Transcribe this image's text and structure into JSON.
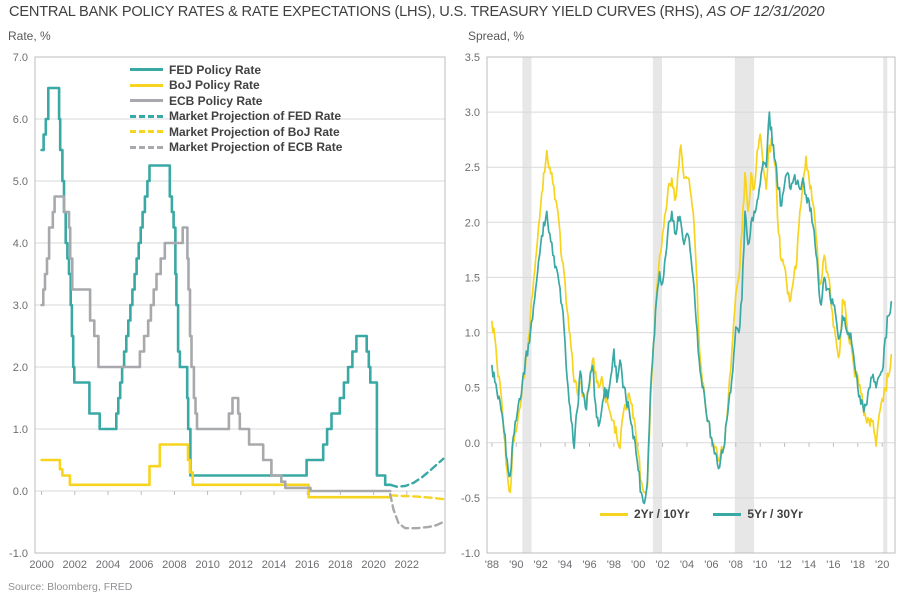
{
  "title": {
    "main": "CENTRAL BANK POLICY RATES & RATE EXPECTATIONS (LHS), U.S. TREASURY YIELD CURVES (RHS), ",
    "as_of": "AS OF 12/31/2020"
  },
  "source": "Source: Bloomberg, FRED",
  "colors": {
    "teal": "#3aa8a4",
    "yellow": "#f6d41f",
    "gray": "#a7a9ac",
    "grid": "#d9d9d9",
    "border": "#bcbcbc",
    "band": "#e7e7e7",
    "text_dark": "#414042",
    "text_axis": "#6d6e71",
    "text_source": "#8f9194"
  },
  "chart_data": [
    {
      "type": "step-line",
      "ylabel": "Rate, %",
      "xlim": [
        1999.6,
        2024.3
      ],
      "ylim": [
        -1.0,
        7.0
      ],
      "grid": true,
      "legend_position": "top-left-inside",
      "yticks": [
        [
          7,
          "7.0"
        ],
        [
          6,
          "6.0"
        ],
        [
          5,
          "5.0"
        ],
        [
          4,
          "4.0"
        ],
        [
          3,
          "3.0"
        ],
        [
          2,
          "2.0"
        ],
        [
          1,
          "1.0"
        ],
        [
          0,
          "0.0"
        ],
        [
          -1,
          "-1.0"
        ]
      ],
      "xticks": [
        [
          2000,
          "2000"
        ],
        [
          2002,
          "2002"
        ],
        [
          2004,
          "2004"
        ],
        [
          2006,
          "2006"
        ],
        [
          2008,
          "2008"
        ],
        [
          2010,
          "2010"
        ],
        [
          2012,
          "2012"
        ],
        [
          2014,
          "2014"
        ],
        [
          2016,
          "2016"
        ],
        [
          2018,
          "2018"
        ],
        [
          2020,
          "2020"
        ],
        [
          2022,
          "2022"
        ]
      ],
      "series": [
        {
          "name": "FED Policy Rate",
          "color_key": "teal",
          "line": "solid",
          "interp": "step",
          "points": [
            [
              2000.0,
              5.5
            ],
            [
              2000.12,
              5.75
            ],
            [
              2000.25,
              6.0
            ],
            [
              2000.4,
              6.5
            ],
            [
              2001.05,
              6.0
            ],
            [
              2001.12,
              5.5
            ],
            [
              2001.25,
              5.0
            ],
            [
              2001.35,
              4.5
            ],
            [
              2001.45,
              4.0
            ],
            [
              2001.55,
              3.75
            ],
            [
              2001.65,
              3.5
            ],
            [
              2001.75,
              3.0
            ],
            [
              2001.82,
              2.5
            ],
            [
              2001.9,
              2.0
            ],
            [
              2001.97,
              1.75
            ],
            [
              2002.88,
              1.25
            ],
            [
              2003.5,
              1.0
            ],
            [
              2004.5,
              1.25
            ],
            [
              2004.62,
              1.5
            ],
            [
              2004.73,
              1.75
            ],
            [
              2004.85,
              2.0
            ],
            [
              2004.97,
              2.25
            ],
            [
              2005.1,
              2.5
            ],
            [
              2005.22,
              2.75
            ],
            [
              2005.35,
              3.0
            ],
            [
              2005.47,
              3.25
            ],
            [
              2005.6,
              3.5
            ],
            [
              2005.72,
              3.75
            ],
            [
              2005.85,
              4.0
            ],
            [
              2005.97,
              4.25
            ],
            [
              2006.08,
              4.5
            ],
            [
              2006.22,
              4.75
            ],
            [
              2006.37,
              5.0
            ],
            [
              2006.5,
              5.25
            ],
            [
              2007.72,
              4.75
            ],
            [
              2007.85,
              4.5
            ],
            [
              2007.95,
              4.25
            ],
            [
              2008.06,
              3.5
            ],
            [
              2008.12,
              3.0
            ],
            [
              2008.22,
              2.25
            ],
            [
              2008.33,
              2.0
            ],
            [
              2008.77,
              1.5
            ],
            [
              2008.83,
              1.0
            ],
            [
              2008.96,
              0.25
            ],
            [
              2015.96,
              0.5
            ],
            [
              2016.96,
              0.75
            ],
            [
              2017.2,
              1.0
            ],
            [
              2017.46,
              1.25
            ],
            [
              2017.96,
              1.5
            ],
            [
              2018.21,
              1.75
            ],
            [
              2018.46,
              2.0
            ],
            [
              2018.72,
              2.25
            ],
            [
              2018.96,
              2.5
            ],
            [
              2019.58,
              2.25
            ],
            [
              2019.71,
              2.0
            ],
            [
              2019.8,
              1.75
            ],
            [
              2020.2,
              0.25
            ],
            [
              2020.7,
              0.1
            ],
            [
              2021.0,
              0.1
            ]
          ]
        },
        {
          "name": "BoJ Policy Rate",
          "color_key": "yellow",
          "line": "solid",
          "interp": "step",
          "points": [
            [
              2000.0,
              0.5
            ],
            [
              2001.1,
              0.35
            ],
            [
              2001.25,
              0.25
            ],
            [
              2001.7,
              0.1
            ],
            [
              2006.5,
              0.4
            ],
            [
              2007.12,
              0.75
            ],
            [
              2008.82,
              0.5
            ],
            [
              2008.93,
              0.3
            ],
            [
              2009.1,
              0.1
            ],
            [
              2016.08,
              -0.1
            ],
            [
              2021.0,
              -0.1
            ]
          ]
        },
        {
          "name": "ECB Policy Rate",
          "color_key": "gray",
          "line": "solid",
          "interp": "step",
          "points": [
            [
              2000.0,
              3.0
            ],
            [
              2000.1,
              3.25
            ],
            [
              2000.2,
              3.5
            ],
            [
              2000.32,
              3.75
            ],
            [
              2000.45,
              4.25
            ],
            [
              2000.67,
              4.5
            ],
            [
              2000.78,
              4.75
            ],
            [
              2001.35,
              4.5
            ],
            [
              2001.65,
              4.25
            ],
            [
              2001.72,
              3.75
            ],
            [
              2001.85,
              3.25
            ],
            [
              2002.92,
              2.75
            ],
            [
              2003.17,
              2.5
            ],
            [
              2003.42,
              2.0
            ],
            [
              2005.92,
              2.25
            ],
            [
              2006.17,
              2.5
            ],
            [
              2006.42,
              2.75
            ],
            [
              2006.58,
              3.0
            ],
            [
              2006.75,
              3.25
            ],
            [
              2006.92,
              3.5
            ],
            [
              2007.17,
              3.75
            ],
            [
              2007.42,
              4.0
            ],
            [
              2008.5,
              4.25
            ],
            [
              2008.78,
              3.75
            ],
            [
              2008.85,
              3.25
            ],
            [
              2008.94,
              2.5
            ],
            [
              2009.03,
              2.0
            ],
            [
              2009.17,
              1.5
            ],
            [
              2009.27,
              1.25
            ],
            [
              2009.36,
              1.0
            ],
            [
              2011.28,
              1.25
            ],
            [
              2011.5,
              1.5
            ],
            [
              2011.84,
              1.25
            ],
            [
              2011.94,
              1.0
            ],
            [
              2012.5,
              0.75
            ],
            [
              2013.35,
              0.5
            ],
            [
              2013.84,
              0.25
            ],
            [
              2014.44,
              0.15
            ],
            [
              2014.68,
              0.05
            ],
            [
              2016.2,
              0.0
            ],
            [
              2021.0,
              0.0
            ]
          ]
        },
        {
          "name": "Market Projection of FED Rate",
          "color_key": "teal",
          "line": "dashed",
          "interp": "linear",
          "points": [
            [
              2021.0,
              0.1
            ],
            [
              2021.4,
              0.07
            ],
            [
              2021.9,
              0.08
            ],
            [
              2022.4,
              0.13
            ],
            [
              2022.9,
              0.22
            ],
            [
              2023.4,
              0.33
            ],
            [
              2023.9,
              0.45
            ],
            [
              2024.2,
              0.52
            ]
          ]
        },
        {
          "name": "Market Projection of BoJ Rate",
          "color_key": "yellow",
          "line": "dashed",
          "interp": "linear",
          "points": [
            [
              2021.0,
              -0.07
            ],
            [
              2021.8,
              -0.08
            ],
            [
              2022.6,
              -0.09
            ],
            [
              2023.5,
              -0.11
            ],
            [
              2024.2,
              -0.13
            ]
          ]
        },
        {
          "name": "Market Projection of ECB Rate",
          "color_key": "gray",
          "line": "dashed",
          "interp": "linear",
          "points": [
            [
              2021.0,
              -0.05
            ],
            [
              2021.2,
              -0.3
            ],
            [
              2021.5,
              -0.52
            ],
            [
              2021.9,
              -0.6
            ],
            [
              2022.6,
              -0.6
            ],
            [
              2023.3,
              -0.58
            ],
            [
              2023.8,
              -0.55
            ],
            [
              2024.2,
              -0.5
            ]
          ]
        }
      ]
    },
    {
      "type": "line",
      "ylabel": "Spread, %",
      "xlim": [
        1987.6,
        2021.05
      ],
      "ylim": [
        -1.0,
        3.5
      ],
      "grid": true,
      "legend_position": "bottom-inside",
      "yticks": [
        [
          3.5,
          "3.5"
        ],
        [
          3,
          "3.0"
        ],
        [
          2.5,
          "2.5"
        ],
        [
          2,
          "2.0"
        ],
        [
          1.5,
          "1.5"
        ],
        [
          1,
          "1.0"
        ],
        [
          0.5,
          "0.5"
        ],
        [
          0,
          "0.0"
        ],
        [
          -0.5,
          "-0.5"
        ],
        [
          -1,
          "-1.0"
        ]
      ],
      "xticks": [
        [
          1988,
          "'88"
        ],
        [
          1990,
          "'90"
        ],
        [
          1992,
          "'92"
        ],
        [
          1994,
          "'94"
        ],
        [
          1996,
          "'96"
        ],
        [
          1998,
          "'98"
        ],
        [
          2000,
          "'00"
        ],
        [
          2002,
          "'02"
        ],
        [
          2004,
          "'04"
        ],
        [
          2006,
          "'06"
        ],
        [
          2008,
          "'08"
        ],
        [
          2010,
          "'10"
        ],
        [
          2012,
          "'12"
        ],
        [
          2014,
          "'14"
        ],
        [
          2016,
          "'16"
        ],
        [
          2018,
          "'18"
        ],
        [
          2020,
          "'20"
        ]
      ],
      "recession_bands": [
        [
          1990.5,
          1991.25
        ],
        [
          2001.2,
          2001.95
        ],
        [
          2007.92,
          2009.5
        ],
        [
          2020.08,
          2020.42
        ]
      ],
      "series": [
        {
          "name": "2Yr / 10Yr",
          "color_key": "yellow",
          "line": "solid",
          "interp": "noisy",
          "start": 1988,
          "step": 0.25,
          "values": [
            1.1,
            0.95,
            0.6,
            0.45,
            0.05,
            -0.25,
            -0.45,
            0.0,
            0.1,
            0.3,
            0.55,
            0.7,
            0.95,
            1.3,
            1.55,
            1.85,
            2.15,
            2.45,
            2.65,
            2.5,
            2.35,
            2.2,
            2.0,
            1.65,
            1.45,
            1.15,
            0.85,
            0.55,
            0.45,
            0.55,
            0.45,
            0.35,
            0.5,
            0.75,
            0.65,
            0.5,
            0.6,
            0.45,
            0.35,
            0.25,
            0.2,
            0.05,
            -0.05,
            0.25,
            0.3,
            0.45,
            0.35,
            0.15,
            -0.1,
            -0.35,
            -0.45,
            -0.4,
            0.35,
            0.9,
            1.35,
            1.7,
            1.9,
            2.1,
            2.35,
            2.4,
            2.2,
            2.45,
            2.7,
            2.4,
            2.4,
            2.3,
            2.1,
            1.6,
            0.9,
            0.55,
            0.35,
            0.2,
            0.05,
            -0.05,
            -0.12,
            -0.1,
            -0.05,
            0.2,
            0.6,
            0.95,
            1.35,
            1.5,
            1.9,
            2.45,
            2.1,
            2.45,
            2.3,
            2.65,
            2.8,
            2.5,
            2.3,
            2.7,
            2.7,
            2.5,
            1.9,
            1.65,
            1.6,
            1.35,
            1.3,
            1.5,
            1.65,
            2.1,
            2.35,
            2.6,
            2.4,
            2.2,
            2.0,
            1.6,
            1.45,
            1.7,
            1.55,
            1.35,
            1.05,
            0.9,
            0.8,
            1.3,
            1.2,
            0.95,
            0.85,
            0.6,
            0.6,
            0.45,
            0.25,
            0.18,
            0.15,
            0.2,
            -0.03,
            0.25,
            0.4,
            0.5,
            0.6,
            0.8
          ]
        },
        {
          "name": "5Yr / 30Yr",
          "color_key": "teal",
          "line": "solid",
          "interp": "noisy",
          "start": 1988,
          "step": 0.25,
          "values": [
            0.7,
            0.55,
            0.4,
            0.3,
            0.1,
            -0.15,
            -0.3,
            0.05,
            0.2,
            0.4,
            0.55,
            0.75,
            0.9,
            1.1,
            1.3,
            1.55,
            1.8,
            2.0,
            2.1,
            1.9,
            1.7,
            1.6,
            1.45,
            1.25,
            0.9,
            0.5,
            0.2,
            -0.05,
            0.3,
            0.65,
            0.45,
            0.3,
            0.55,
            0.7,
            0.35,
            0.15,
            0.3,
            0.5,
            0.4,
            0.6,
            0.85,
            0.55,
            0.75,
            0.5,
            0.4,
            0.3,
            0.15,
            0.0,
            -0.25,
            -0.45,
            -0.55,
            -0.35,
            0.45,
            0.9,
            1.3,
            1.55,
            1.45,
            1.7,
            2.0,
            2.1,
            1.9,
            2.05,
            2.0,
            1.8,
            1.9,
            1.75,
            1.5,
            1.1,
            0.75,
            0.5,
            0.35,
            0.2,
            0.05,
            -0.1,
            -0.2,
            -0.15,
            -0.05,
            0.2,
            0.45,
            0.65,
            1.05,
            1.0,
            1.3,
            2.1,
            1.8,
            2.0,
            2.1,
            2.2,
            2.35,
            2.55,
            2.5,
            3.0,
            2.7,
            2.55,
            2.3,
            2.15,
            2.35,
            2.45,
            2.3,
            2.4,
            2.35,
            2.3,
            2.4,
            2.25,
            2.2,
            2.0,
            1.8,
            1.5,
            1.25,
            1.5,
            1.4,
            1.3,
            1.25,
            1.1,
            0.95,
            1.15,
            1.05,
            1.0,
            0.9,
            0.7,
            0.5,
            0.35,
            0.28,
            0.35,
            0.5,
            0.62,
            0.5,
            0.6,
            0.65,
            0.95,
            1.15,
            1.28
          ]
        }
      ]
    }
  ]
}
